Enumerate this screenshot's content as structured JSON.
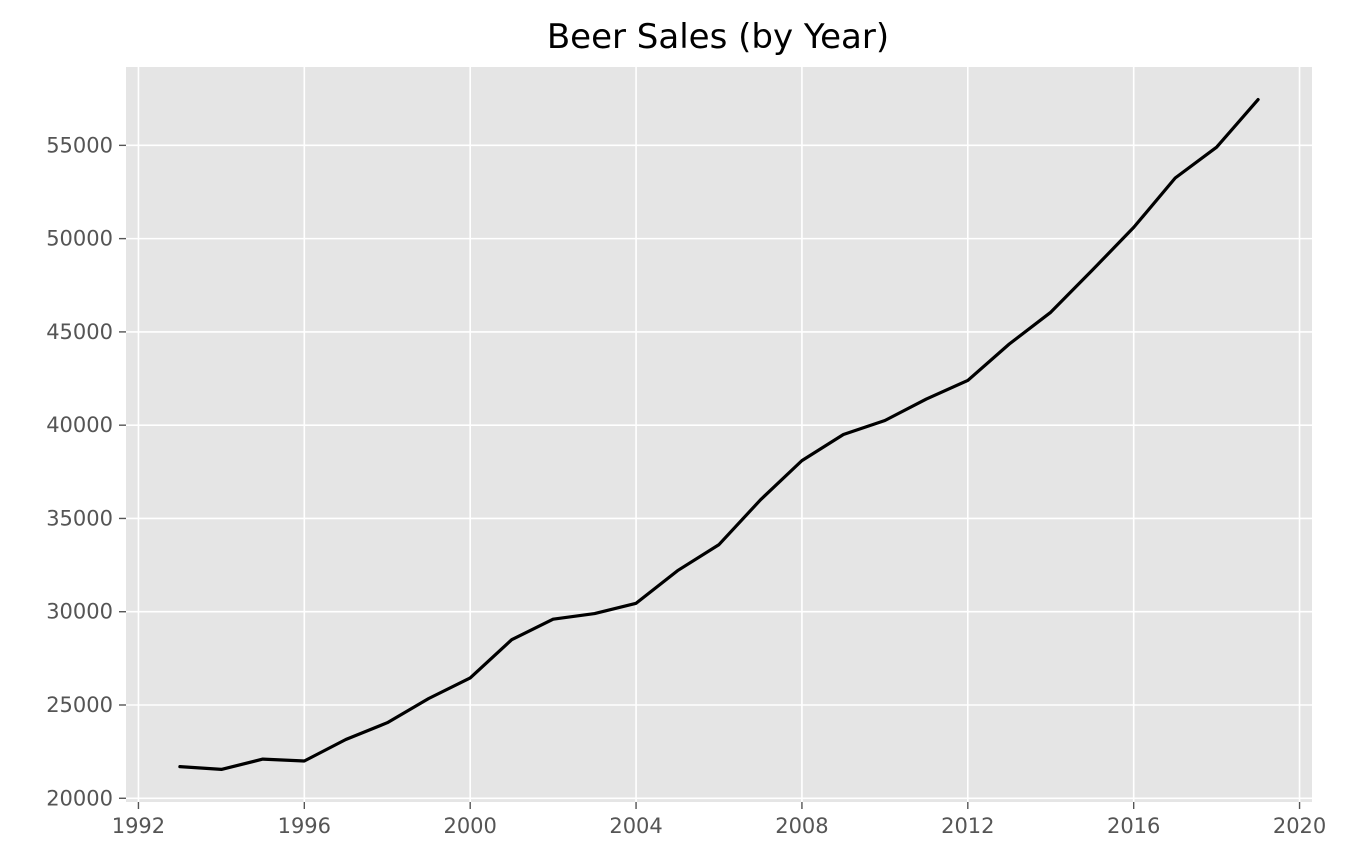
{
  "chart_data": {
    "type": "line",
    "title": "Beer Sales (by Year)",
    "xlabel": "",
    "ylabel": "",
    "xlim": [
      1991.7,
      2020.3
    ],
    "ylim": [
      19800,
      59200
    ],
    "x_ticks": [
      1992,
      1996,
      2000,
      2004,
      2008,
      2012,
      2016,
      2020
    ],
    "y_ticks": [
      20000,
      25000,
      30000,
      35000,
      40000,
      45000,
      50000,
      55000
    ],
    "x_tick_labels": [
      "1992",
      "1996",
      "2000",
      "2004",
      "2008",
      "2012",
      "2016",
      "2020"
    ],
    "y_tick_labels": [
      "20000",
      "25000",
      "30000",
      "35000",
      "40000",
      "45000",
      "50000",
      "55000"
    ],
    "grid": true,
    "series": [
      {
        "color": "#000000",
        "x": [
          1993,
          1994,
          1995,
          1996,
          1997,
          1998,
          1999,
          2000,
          2001,
          2002,
          2003,
          2004,
          2005,
          2006,
          2007,
          2008,
          2009,
          2010,
          2011,
          2012,
          2013,
          2014,
          2015,
          2016,
          2017,
          2018,
          2019
        ],
        "y": [
          21700,
          21550,
          22100,
          22000,
          23150,
          24050,
          25350,
          26450,
          28500,
          29600,
          29900,
          30450,
          32200,
          33600,
          36000,
          38100,
          39500,
          40250,
          41400,
          42400,
          44350,
          46050,
          48300,
          50600,
          53250,
          54900,
          57450
        ]
      }
    ],
    "colors": {
      "plot_bg": "#e5e5e5",
      "grid": "#ffffff",
      "tick_text": "#555555",
      "line": "#000000"
    }
  }
}
